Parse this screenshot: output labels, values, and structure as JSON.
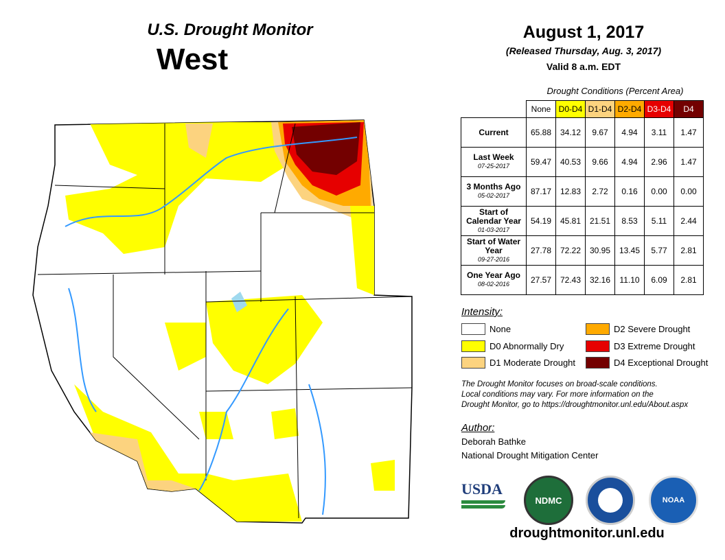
{
  "header": {
    "title": "U.S. Drought Monitor",
    "region": "West",
    "date": "August 1, 2017",
    "released": "(Released Thursday, Aug. 3, 2017)",
    "valid": "Valid 8 a.m. EDT"
  },
  "table": {
    "caption": "Drought Conditions (Percent Area)",
    "columns": [
      "None",
      "D0-D4",
      "D1-D4",
      "D2-D4",
      "D3-D4",
      "D4"
    ],
    "column_colors": [
      "#ffffff",
      "#ffff00",
      "#fcd37f",
      "#ffaa00",
      "#e60000",
      "#730000"
    ],
    "rows": [
      {
        "label": "Current",
        "date": "",
        "values": [
          "65.88",
          "34.12",
          "9.67",
          "4.94",
          "3.11",
          "1.47"
        ]
      },
      {
        "label": "Last Week",
        "date": "07-25-2017",
        "values": [
          "59.47",
          "40.53",
          "9.66",
          "4.94",
          "2.96",
          "1.47"
        ]
      },
      {
        "label": "3 Months Ago",
        "date": "05-02-2017",
        "values": [
          "87.17",
          "12.83",
          "2.72",
          "0.16",
          "0.00",
          "0.00"
        ]
      },
      {
        "label": "Start of Calendar Year",
        "date": "01-03-2017",
        "values": [
          "54.19",
          "45.81",
          "21.51",
          "8.53",
          "5.11",
          "2.44"
        ]
      },
      {
        "label": "Start of Water Year",
        "date": "09-27-2016",
        "values": [
          "27.78",
          "72.22",
          "30.95",
          "13.45",
          "5.77",
          "2.81"
        ]
      },
      {
        "label": "One Year Ago",
        "date": "08-02-2016",
        "values": [
          "27.57",
          "72.43",
          "32.16",
          "11.10",
          "6.09",
          "2.81"
        ]
      }
    ]
  },
  "legend": {
    "title": "Intensity:",
    "items": [
      {
        "label": "None",
        "color": "#ffffff"
      },
      {
        "label": "D0 Abnormally Dry",
        "color": "#ffff00"
      },
      {
        "label": "D1 Moderate Drought",
        "color": "#fcd37f"
      },
      {
        "label": "D2 Severe Drought",
        "color": "#ffaa00"
      },
      {
        "label": "D3 Extreme Drought",
        "color": "#e60000"
      },
      {
        "label": "D4 Exceptional Drought",
        "color": "#730000"
      }
    ]
  },
  "note": [
    "The Drought Monitor focuses on broad-scale conditions.",
    "Local conditions may vary. For more information on the",
    "Drought Monitor, go to https://droughtmonitor.unl.edu/About.aspx"
  ],
  "author": {
    "label": "Author:",
    "name": "Deborah Bathke",
    "org": "National Drought Mitigation Center"
  },
  "logos": {
    "usda": "USDA",
    "ndmc": "NDMC",
    "noaa": "NOAA"
  },
  "url": "droughtmonitor.unl.edu"
}
